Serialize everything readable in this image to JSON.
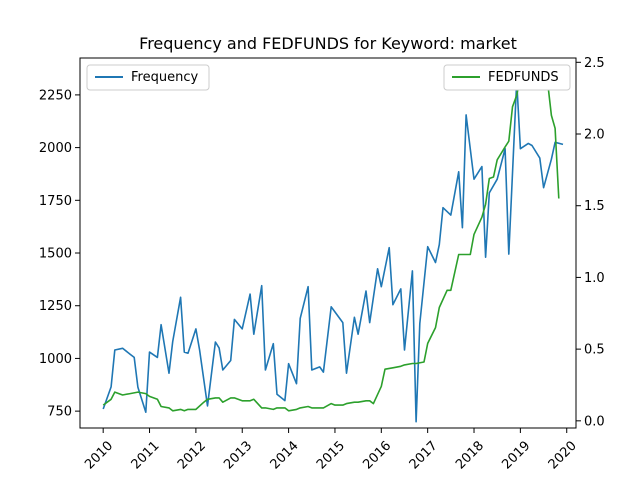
{
  "chart_data": {
    "type": "line",
    "title": "Frequency and FEDFUNDS for Keyword: market",
    "x_ticks": [
      "2010",
      "2011",
      "2012",
      "2013",
      "2014",
      "2015",
      "2016",
      "2017",
      "2018",
      "2019",
      "2020"
    ],
    "x_range": [
      2009.5,
      2020.2
    ],
    "y_left": {
      "ticks": [
        750,
        1000,
        1250,
        1500,
        1750,
        2000,
        2250
      ],
      "range": [
        670,
        2425
      ]
    },
    "y_right": {
      "ticks": [
        0.0,
        0.5,
        1.0,
        1.5,
        2.0,
        2.5
      ],
      "range": [
        -0.05,
        2.53
      ]
    },
    "legend": {
      "left_position": "top-left",
      "right_position": "top-right"
    },
    "grid": false,
    "series": [
      {
        "name": "Frequency",
        "axis": "left",
        "color": "#1f77b4",
        "points": [
          [
            2010.0,
            760
          ],
          [
            2010.17,
            865
          ],
          [
            2010.25,
            1040
          ],
          [
            2010.42,
            1048
          ],
          [
            2010.58,
            1020
          ],
          [
            2010.67,
            1005
          ],
          [
            2010.75,
            863
          ],
          [
            2010.92,
            745
          ],
          [
            2011.0,
            1030
          ],
          [
            2011.17,
            1005
          ],
          [
            2011.25,
            1160
          ],
          [
            2011.42,
            930
          ],
          [
            2011.5,
            1080
          ],
          [
            2011.67,
            1290
          ],
          [
            2011.75,
            1030
          ],
          [
            2011.83,
            1025
          ],
          [
            2012.0,
            1140
          ],
          [
            2012.08,
            1040
          ],
          [
            2012.25,
            775
          ],
          [
            2012.42,
            1078
          ],
          [
            2012.5,
            1050
          ],
          [
            2012.58,
            945
          ],
          [
            2012.75,
            990
          ],
          [
            2012.83,
            1185
          ],
          [
            2013.0,
            1140
          ],
          [
            2013.17,
            1305
          ],
          [
            2013.25,
            1115
          ],
          [
            2013.42,
            1345
          ],
          [
            2013.5,
            945
          ],
          [
            2013.67,
            1070
          ],
          [
            2013.75,
            830
          ],
          [
            2013.92,
            800
          ],
          [
            2014.0,
            975
          ],
          [
            2014.17,
            880
          ],
          [
            2014.25,
            1190
          ],
          [
            2014.42,
            1340
          ],
          [
            2014.5,
            945
          ],
          [
            2014.67,
            960
          ],
          [
            2014.75,
            935
          ],
          [
            2014.92,
            1245
          ],
          [
            2015.0,
            1220
          ],
          [
            2015.17,
            1170
          ],
          [
            2015.25,
            930
          ],
          [
            2015.42,
            1195
          ],
          [
            2015.5,
            1115
          ],
          [
            2015.67,
            1320
          ],
          [
            2015.75,
            1170
          ],
          [
            2015.92,
            1425
          ],
          [
            2016.0,
            1340
          ],
          [
            2016.17,
            1525
          ],
          [
            2016.25,
            1255
          ],
          [
            2016.42,
            1330
          ],
          [
            2016.5,
            1040
          ],
          [
            2016.67,
            1415
          ],
          [
            2016.75,
            700
          ],
          [
            2016.83,
            1165
          ],
          [
            2017.0,
            1530
          ],
          [
            2017.17,
            1455
          ],
          [
            2017.25,
            1540
          ],
          [
            2017.33,
            1715
          ],
          [
            2017.5,
            1680
          ],
          [
            2017.67,
            1885
          ],
          [
            2017.75,
            1620
          ],
          [
            2017.83,
            2155
          ],
          [
            2018.0,
            1850
          ],
          [
            2018.17,
            1910
          ],
          [
            2018.25,
            1480
          ],
          [
            2018.33,
            1785
          ],
          [
            2018.5,
            1850
          ],
          [
            2018.67,
            1995
          ],
          [
            2018.75,
            1495
          ],
          [
            2018.92,
            2315
          ],
          [
            2019.0,
            1995
          ],
          [
            2019.17,
            2020
          ],
          [
            2019.25,
            2010
          ],
          [
            2019.42,
            1950
          ],
          [
            2019.5,
            1810
          ],
          [
            2019.67,
            1945
          ],
          [
            2019.75,
            2025
          ],
          [
            2019.92,
            2015
          ]
        ]
      },
      {
        "name": "FEDFUNDS",
        "axis": "right",
        "color": "#2ca02c",
        "points": [
          [
            2010.0,
            0.11
          ],
          [
            2010.17,
            0.15
          ],
          [
            2010.25,
            0.2
          ],
          [
            2010.42,
            0.18
          ],
          [
            2010.58,
            0.19
          ],
          [
            2010.75,
            0.2
          ],
          [
            2010.92,
            0.19
          ],
          [
            2011.0,
            0.17
          ],
          [
            2011.17,
            0.15
          ],
          [
            2011.25,
            0.1
          ],
          [
            2011.42,
            0.09
          ],
          [
            2011.5,
            0.07
          ],
          [
            2011.67,
            0.08
          ],
          [
            2011.75,
            0.07
          ],
          [
            2011.83,
            0.08
          ],
          [
            2012.0,
            0.08
          ],
          [
            2012.17,
            0.13
          ],
          [
            2012.25,
            0.15
          ],
          [
            2012.42,
            0.16
          ],
          [
            2012.5,
            0.16
          ],
          [
            2012.58,
            0.13
          ],
          [
            2012.75,
            0.16
          ],
          [
            2012.83,
            0.16
          ],
          [
            2013.0,
            0.14
          ],
          [
            2013.17,
            0.14
          ],
          [
            2013.25,
            0.15
          ],
          [
            2013.42,
            0.09
          ],
          [
            2013.5,
            0.09
          ],
          [
            2013.67,
            0.08
          ],
          [
            2013.75,
            0.09
          ],
          [
            2013.92,
            0.09
          ],
          [
            2014.0,
            0.07
          ],
          [
            2014.17,
            0.08
          ],
          [
            2014.25,
            0.09
          ],
          [
            2014.42,
            0.1
          ],
          [
            2014.5,
            0.09
          ],
          [
            2014.67,
            0.09
          ],
          [
            2014.75,
            0.09
          ],
          [
            2014.92,
            0.12
          ],
          [
            2015.0,
            0.11
          ],
          [
            2015.17,
            0.11
          ],
          [
            2015.25,
            0.12
          ],
          [
            2015.42,
            0.13
          ],
          [
            2015.5,
            0.13
          ],
          [
            2015.67,
            0.14
          ],
          [
            2015.75,
            0.14
          ],
          [
            2015.83,
            0.12
          ],
          [
            2016.0,
            0.24
          ],
          [
            2016.08,
            0.36
          ],
          [
            2016.25,
            0.37
          ],
          [
            2016.42,
            0.38
          ],
          [
            2016.5,
            0.39
          ],
          [
            2016.67,
            0.4
          ],
          [
            2016.75,
            0.4
          ],
          [
            2016.92,
            0.41
          ],
          [
            2017.0,
            0.54
          ],
          [
            2017.17,
            0.65
          ],
          [
            2017.25,
            0.79
          ],
          [
            2017.42,
            0.91
          ],
          [
            2017.5,
            0.91
          ],
          [
            2017.67,
            1.16
          ],
          [
            2017.75,
            1.16
          ],
          [
            2017.92,
            1.16
          ],
          [
            2018.0,
            1.3
          ],
          [
            2018.17,
            1.42
          ],
          [
            2018.25,
            1.51
          ],
          [
            2018.33,
            1.69
          ],
          [
            2018.42,
            1.7
          ],
          [
            2018.5,
            1.82
          ],
          [
            2018.67,
            1.91
          ],
          [
            2018.75,
            1.95
          ],
          [
            2018.83,
            2.19
          ],
          [
            2018.92,
            2.27
          ],
          [
            2019.0,
            2.4
          ],
          [
            2019.17,
            2.41
          ],
          [
            2019.25,
            2.42
          ],
          [
            2019.42,
            2.4
          ],
          [
            2019.58,
            2.38
          ],
          [
            2019.67,
            2.13
          ],
          [
            2019.75,
            2.04
          ],
          [
            2019.83,
            1.55
          ]
        ]
      }
    ]
  }
}
